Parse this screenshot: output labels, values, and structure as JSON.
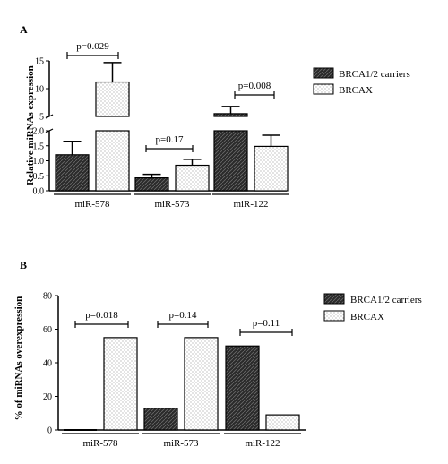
{
  "chart_data": [
    {
      "panel": "A",
      "type": "bar",
      "ylabel": "Relative miRNAs expression",
      "axis_break": true,
      "ylim_lower": [
        0,
        2
      ],
      "ylim_upper": [
        5,
        15
      ],
      "yticks_lower": [
        "0.0",
        "0.5",
        "1.0",
        "1.5",
        "2.0"
      ],
      "yticks_upper": [
        "5",
        "10",
        "15"
      ],
      "categories": [
        "miR-578",
        "miR-573",
        "miR-122"
      ],
      "series": [
        {
          "name": "BRCA1/2 carriers",
          "values": [
            1.2,
            0.43,
            5.5
          ],
          "errors": [
            0.45,
            0.12,
            1.3
          ],
          "color": "#222222",
          "pattern": "dark-hatched"
        },
        {
          "name": "BRCAX",
          "values": [
            11.2,
            0.85,
            1.48
          ],
          "errors": [
            3.5,
            0.2,
            0.37
          ],
          "color": "#ffffff",
          "pattern": "light-dotted"
        }
      ],
      "pvalues": [
        {
          "category": 0,
          "label": "p=0.029"
        },
        {
          "category": 1,
          "label": "p=0.17"
        },
        {
          "category": 2,
          "label": "p=0.008"
        }
      ]
    },
    {
      "panel": "B",
      "type": "bar",
      "ylabel": "% of miRNAs overexpression",
      "ylim": [
        0,
        80
      ],
      "yticks": [
        "0",
        "20",
        "40",
        "60",
        "80"
      ],
      "categories": [
        "miR-578",
        "miR-573",
        "miR-122"
      ],
      "series": [
        {
          "name": "BRCA1/2 carriers",
          "values": [
            0,
            13,
            50
          ],
          "color": "#222222",
          "pattern": "dark-hatched"
        },
        {
          "name": "BRCAX",
          "values": [
            55,
            55,
            9
          ],
          "color": "#ffffff",
          "pattern": "light-dotted"
        }
      ],
      "pvalues": [
        {
          "category": 0,
          "label": "p=0.018"
        },
        {
          "category": 1,
          "label": "p=0.14"
        },
        {
          "category": 2,
          "label": "p=0.11"
        }
      ]
    }
  ]
}
